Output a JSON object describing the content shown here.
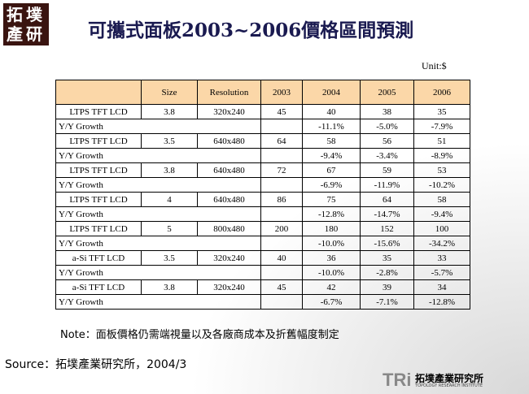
{
  "header": {
    "title": "可攜式面板2003~2006價格區間預測",
    "logo": "拓墣產研",
    "unit": "Unit:$"
  },
  "table": {
    "header": [
      "Size",
      "Resolution",
      "2003",
      "2004",
      "2005",
      "2006"
    ],
    "rows": [
      {
        "model": "LTPS TFT LCD",
        "cells": [
          "3.8",
          "320x240",
          "45",
          "40",
          "38",
          "35"
        ],
        "growth_label": "Y/Y Growth",
        "growth": [
          "-11.1%",
          "-5.0%",
          "-7.9%"
        ]
      },
      {
        "model": "LTPS TFT LCD",
        "cells": [
          "3.5",
          "640x480",
          "64",
          "58",
          "56",
          "51"
        ],
        "growth_label": "Y/Y Growth",
        "growth": [
          "-9.4%",
          "-3.4%",
          "-8.9%"
        ]
      },
      {
        "model": "LTPS TFT LCD",
        "cells": [
          "3.8",
          "640x480",
          "72",
          "67",
          "59",
          "53"
        ],
        "growth_label": "Y/Y Growth",
        "growth": [
          "-6.9%",
          "-11.9%",
          "-10.2%"
        ]
      },
      {
        "model": "LTPS TFT LCD",
        "cells": [
          "4",
          "640x480",
          "86",
          "75",
          "64",
          "58"
        ],
        "growth_label": "Y/Y Growth",
        "growth": [
          "-12.8%",
          "-14.7%",
          "-9.4%"
        ]
      },
      {
        "model": "LTPS TFT LCD",
        "cells": [
          "5",
          "800x480",
          "200",
          "180",
          "152",
          "100"
        ],
        "growth_label": "Y/Y Growth",
        "growth": [
          "-10.0%",
          "-15.6%",
          "-34.2%"
        ]
      },
      {
        "model": "a-Si TFT LCD",
        "cells": [
          "3.5",
          "320x240",
          "40",
          "36",
          "35",
          "33"
        ],
        "growth_label": "Y/Y Growth",
        "growth": [
          "-10.0%",
          "-2.8%",
          "-5.7%"
        ]
      },
      {
        "model": "a-Si TFT LCD",
        "cells": [
          "3.8",
          "320x240",
          "45",
          "42",
          "39",
          "34"
        ],
        "growth_label": "Y/Y Growth",
        "growth": [
          "-6.7%",
          "-7.1%",
          "-12.8%"
        ]
      }
    ]
  },
  "note": "Note：面板價格仍需端視量以及各廠商成本及折舊幅度制定",
  "source": "Source：拓墣產業研究所，2004/3",
  "footer": {
    "brand": "TRi",
    "name": "拓墣產業研究所",
    "name_en": "TOPOLOGY RESEARCH INSTITUTE"
  }
}
